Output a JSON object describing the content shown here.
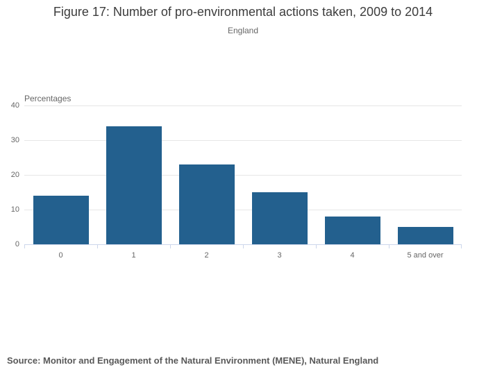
{
  "chart_data": {
    "type": "bar",
    "title": "Figure 17: Number of pro-environmental actions taken, 2009 to 2014",
    "subtitle": "England",
    "y_axis_title": "Percentages",
    "categories": [
      "0",
      "1",
      "2",
      "3",
      "4",
      "5 and over"
    ],
    "values": [
      14,
      34,
      23,
      15,
      8,
      5
    ],
    "xlabel": "",
    "ylabel": "Percentages",
    "ylim": [
      0,
      40
    ],
    "y_ticks": [
      0,
      10,
      20,
      30,
      40
    ],
    "grid": true,
    "legend_position": "none",
    "colors": {
      "bar": "#23608E",
      "gridline": "#e6e6e6",
      "axis_line": "#ccd6eb",
      "title": "#3c3c3c",
      "labels": "#666666",
      "source": "#595959",
      "background": "#ffffff"
    }
  },
  "source": {
    "text": "Source: Monitor and Engagement of the Natural Environment (MENE), Natural England"
  }
}
